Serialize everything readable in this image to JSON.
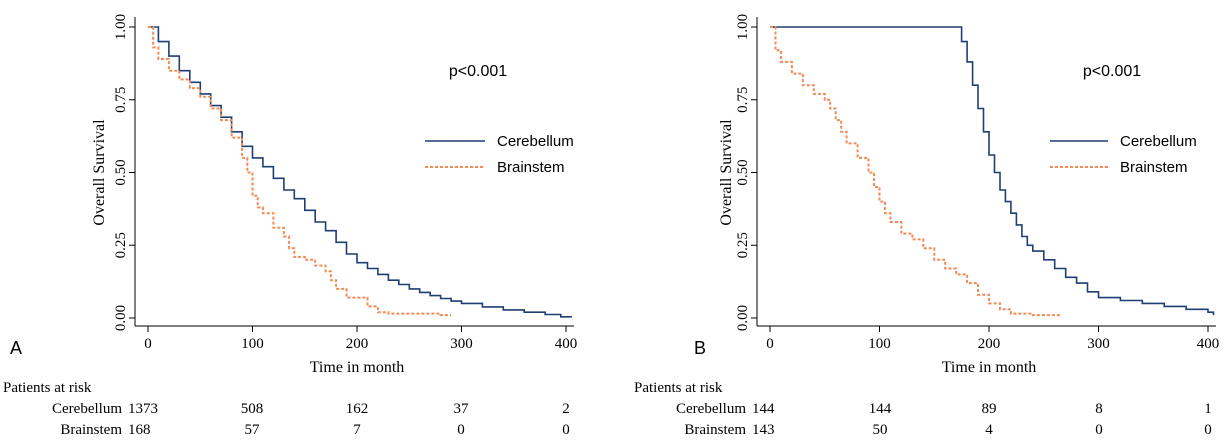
{
  "chart_data": [
    {
      "type": "line",
      "panel_label": "A",
      "annotation": "p<0.001",
      "xlabel": "Time in month",
      "ylabel": "Overall Survival",
      "xlim": [
        0,
        400
      ],
      "ylim": [
        0,
        1
      ],
      "x_ticks": [
        "0",
        "100",
        "200",
        "300",
        "400"
      ],
      "y_ticks": [
        "0.00",
        "0.25",
        "0.50",
        "0.75",
        "1.00"
      ],
      "grid": false,
      "legend_position": "right",
      "colors": {
        "Cerebellum": "#1f3f73",
        "Brainstem": "#f28a55"
      },
      "series": [
        {
          "name": "Cerebellum",
          "style": "solid",
          "x": [
            0,
            10,
            20,
            30,
            40,
            50,
            60,
            70,
            80,
            90,
            100,
            110,
            120,
            130,
            140,
            150,
            160,
            170,
            180,
            190,
            200,
            210,
            220,
            230,
            240,
            250,
            260,
            270,
            280,
            290,
            300,
            320,
            340,
            360,
            380,
            395,
            405
          ],
          "y": [
            1.0,
            0.95,
            0.9,
            0.85,
            0.81,
            0.77,
            0.73,
            0.69,
            0.64,
            0.59,
            0.55,
            0.52,
            0.48,
            0.44,
            0.41,
            0.37,
            0.33,
            0.3,
            0.26,
            0.22,
            0.19,
            0.17,
            0.15,
            0.13,
            0.115,
            0.1,
            0.088,
            0.077,
            0.067,
            0.058,
            0.05,
            0.038,
            0.028,
            0.02,
            0.012,
            0.004,
            0.002
          ]
        },
        {
          "name": "Brainstem",
          "style": "dashed",
          "x": [
            0,
            5,
            10,
            20,
            30,
            40,
            50,
            60,
            70,
            80,
            90,
            95,
            100,
            105,
            110,
            120,
            130,
            135,
            140,
            150,
            160,
            170,
            175,
            180,
            190,
            200,
            210,
            220,
            230,
            240,
            260,
            280,
            290
          ],
          "y": [
            1.0,
            0.93,
            0.89,
            0.85,
            0.82,
            0.79,
            0.76,
            0.72,
            0.68,
            0.62,
            0.55,
            0.5,
            0.42,
            0.38,
            0.36,
            0.31,
            0.28,
            0.24,
            0.21,
            0.2,
            0.18,
            0.16,
            0.13,
            0.1,
            0.07,
            0.07,
            0.04,
            0.02,
            0.015,
            0.015,
            0.015,
            0.01,
            0.01
          ]
        }
      ],
      "risk_table": {
        "header": "Patients at risk",
        "rows": [
          {
            "label": "Cerebellum",
            "values": [
              "1373",
              "508",
              "162",
              "37",
              "2"
            ]
          },
          {
            "label": "Brainstem",
            "values": [
              "168",
              "57",
              "7",
              "0",
              "0"
            ]
          }
        ]
      }
    },
    {
      "type": "line",
      "panel_label": "B",
      "annotation": "p<0.001",
      "xlabel": "Time in month",
      "ylabel": "Overall Survival",
      "xlim": [
        0,
        400
      ],
      "ylim": [
        0,
        1
      ],
      "x_ticks": [
        "0",
        "100",
        "200",
        "300",
        "400"
      ],
      "y_ticks": [
        "0.00",
        "0.25",
        "0.50",
        "0.75",
        "1.00"
      ],
      "grid": false,
      "legend_position": "right",
      "colors": {
        "Cerebellum": "#1f3f73",
        "Brainstem": "#f28a55"
      },
      "series": [
        {
          "name": "Cerebellum",
          "style": "solid",
          "x": [
            0,
            170,
            175,
            180,
            185,
            190,
            195,
            200,
            205,
            210,
            215,
            220,
            225,
            230,
            235,
            240,
            250,
            260,
            270,
            280,
            290,
            300,
            320,
            340,
            360,
            380,
            400,
            405
          ],
          "y": [
            1.0,
            1.0,
            0.95,
            0.88,
            0.8,
            0.72,
            0.64,
            0.56,
            0.5,
            0.44,
            0.4,
            0.36,
            0.32,
            0.28,
            0.25,
            0.23,
            0.2,
            0.17,
            0.14,
            0.12,
            0.09,
            0.07,
            0.06,
            0.05,
            0.04,
            0.03,
            0.02,
            0.01
          ]
        },
        {
          "name": "Brainstem",
          "style": "dashed",
          "x": [
            0,
            5,
            10,
            20,
            30,
            40,
            50,
            55,
            60,
            65,
            70,
            80,
            90,
            95,
            100,
            105,
            110,
            120,
            130,
            140,
            150,
            160,
            170,
            180,
            190,
            200,
            210,
            220,
            240,
            260,
            265
          ],
          "y": [
            1.0,
            0.92,
            0.88,
            0.84,
            0.8,
            0.77,
            0.75,
            0.72,
            0.68,
            0.64,
            0.6,
            0.55,
            0.5,
            0.45,
            0.4,
            0.36,
            0.33,
            0.29,
            0.27,
            0.24,
            0.2,
            0.17,
            0.15,
            0.12,
            0.08,
            0.05,
            0.03,
            0.015,
            0.01,
            0.01,
            0.01
          ]
        }
      ],
      "risk_table": {
        "header": "Patients at risk",
        "rows": [
          {
            "label": "Cerebellum",
            "values": [
              "144",
              "144",
              "89",
              "8",
              "1"
            ]
          },
          {
            "label": "Brainstem",
            "values": [
              "143",
              "50",
              "4",
              "0",
              "0"
            ]
          }
        ]
      }
    }
  ]
}
